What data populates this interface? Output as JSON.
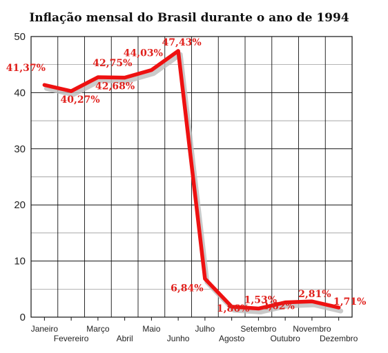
{
  "chart_data": {
    "type": "line",
    "title": "Inflação mensal do Brasil durante o ano de 1994",
    "categories": [
      "Janeiro",
      "Fevereiro",
      "Março",
      "Abril",
      "Maio",
      "Junho",
      "Julho",
      "Agosto",
      "Setembro",
      "Outubro",
      "Novembro",
      "Dezembro"
    ],
    "series": [
      {
        "values": [
          41.37,
          40.27,
          42.75,
          42.68,
          44.03,
          47.43,
          6.84,
          1.86,
          1.53,
          2.62,
          2.81,
          1.71
        ]
      }
    ],
    "data_labels": [
      "41,37%",
      "40,27%",
      "42,75%",
      "42,68%",
      "44,03%",
      "47,43%",
      "6,84%",
      "1,86%",
      "1,53%",
      "2,62%",
      "2,81%",
      "1,71%"
    ],
    "y_ticks": [
      "0",
      "10",
      "20",
      "30",
      "40",
      "50"
    ],
    "ylim": [
      0,
      50
    ],
    "grid": true,
    "colors": {
      "line": "#ee1111",
      "labels": "#e0201c",
      "grid": "#111111",
      "shadow": "#bdbdbd"
    }
  }
}
